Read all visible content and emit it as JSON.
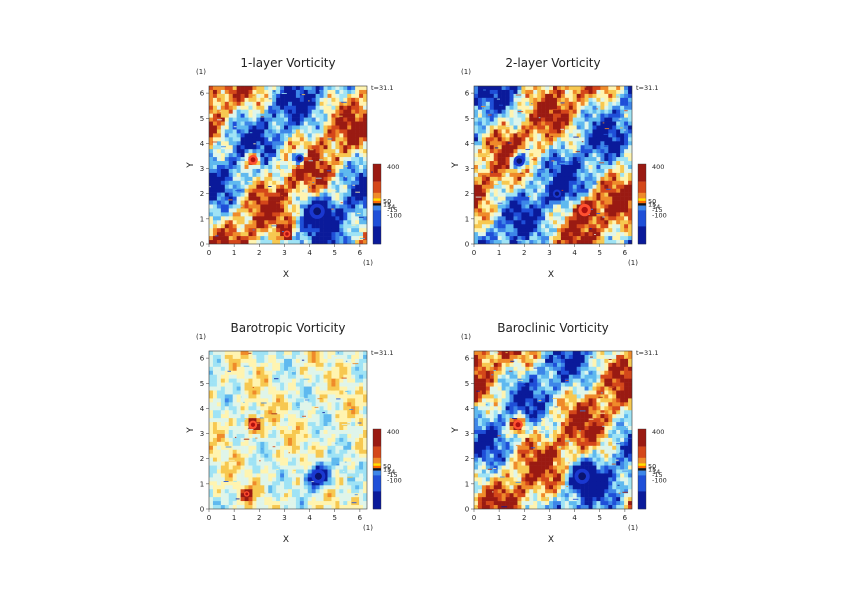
{
  "figure": {
    "colormap": [
      "#0a1a9a",
      "#1f4fd8",
      "#3d86e8",
      "#5fb9ef",
      "#9fe3f5",
      "#dff5ea",
      "#fff4b0",
      "#f7c850",
      "#ef8a2a",
      "#d4471a",
      "#9a1a12"
    ],
    "colorbar_extra_colors": [
      "#111111",
      "#ff6a00",
      "#ffe000"
    ]
  },
  "chart_data": [
    {
      "type": "heatmap",
      "title": "1-layer Vorticity",
      "xlabel": "X",
      "ylabel": "Y",
      "x_unit": "(1)",
      "y_unit": "(1)",
      "time_label": "t=31.1",
      "xlim": [
        0,
        6.283
      ],
      "ylim": [
        0,
        6.283
      ],
      "x_ticks": [
        "0",
        "1",
        "2",
        "3",
        "4",
        "5",
        "6"
      ],
      "y_ticks": [
        "0",
        "1",
        "2",
        "3",
        "4",
        "5",
        "6"
      ],
      "colorbar": {
        "ticks": [
          "400",
          "50",
          "15",
          "14",
          "-15",
          "-100"
        ]
      },
      "pattern": "layer1",
      "vortices": [
        {
          "x": 1.75,
          "y": 3.35,
          "sign": 1,
          "r": 0.35
        },
        {
          "x": 4.3,
          "y": 1.3,
          "sign": -1,
          "r": 0.55
        },
        {
          "x": 3.1,
          "y": 0.4,
          "sign": 1,
          "r": 0.25
        },
        {
          "x": 3.6,
          "y": 3.4,
          "sign": -1,
          "r": 0.3
        }
      ]
    },
    {
      "type": "heatmap",
      "title": "2-layer Vorticity",
      "xlabel": "X",
      "ylabel": "Y",
      "x_unit": "(1)",
      "y_unit": "(1)",
      "time_label": "t=31.1",
      "xlim": [
        0,
        6.283
      ],
      "ylim": [
        0,
        6.283
      ],
      "x_ticks": [
        "0",
        "1",
        "2",
        "3",
        "4",
        "5",
        "6"
      ],
      "y_ticks": [
        "0",
        "1",
        "2",
        "3",
        "4",
        "5",
        "6"
      ],
      "colorbar": {
        "ticks": [
          "400",
          "50",
          "15",
          "14",
          "-15",
          "-100"
        ]
      },
      "pattern": "layer2",
      "vortices": [
        {
          "x": 4.4,
          "y": 1.35,
          "sign": 1,
          "r": 0.45
        },
        {
          "x": 1.8,
          "y": 3.3,
          "sign": -1,
          "r": 0.4
        },
        {
          "x": 3.3,
          "y": 2.0,
          "sign": -1,
          "r": 0.3
        }
      ]
    },
    {
      "type": "heatmap",
      "title": "Barotropic Vorticity",
      "xlabel": "X",
      "ylabel": "Y",
      "x_unit": "(1)",
      "y_unit": "(1)",
      "time_label": "t=31.1",
      "xlim": [
        0,
        6.283
      ],
      "ylim": [
        0,
        6.283
      ],
      "x_ticks": [
        "0",
        "1",
        "2",
        "3",
        "4",
        "5",
        "6"
      ],
      "y_ticks": [
        "0",
        "1",
        "2",
        "3",
        "4",
        "5",
        "6"
      ],
      "colorbar": {
        "ticks": [
          "400",
          "50",
          "15",
          "14",
          "-15",
          "-100"
        ]
      },
      "pattern": "barotropic",
      "vortices": [
        {
          "x": 1.75,
          "y": 3.35,
          "sign": 1,
          "r": 0.3
        },
        {
          "x": 4.35,
          "y": 1.3,
          "sign": -1,
          "r": 0.5
        },
        {
          "x": 1.5,
          "y": 0.6,
          "sign": 1,
          "r": 0.2
        }
      ]
    },
    {
      "type": "heatmap",
      "title": "Baroclinic Vorticity",
      "xlabel": "X",
      "ylabel": "Y",
      "x_unit": "(1)",
      "y_unit": "(1)",
      "time_label": "t=31.1",
      "xlim": [
        0,
        6.283
      ],
      "ylim": [
        0,
        6.283
      ],
      "x_ticks": [
        "0",
        "1",
        "2",
        "3",
        "4",
        "5",
        "6"
      ],
      "y_ticks": [
        "0",
        "1",
        "2",
        "3",
        "4",
        "5",
        "6"
      ],
      "colorbar": {
        "ticks": [
          "400",
          "50",
          "15",
          "14",
          "-15",
          "-100"
        ]
      },
      "pattern": "baroclinic",
      "vortices": [
        {
          "x": 1.75,
          "y": 3.35,
          "sign": 1,
          "r": 0.35
        },
        {
          "x": 4.3,
          "y": 1.3,
          "sign": -1,
          "r": 0.55
        }
      ]
    }
  ]
}
